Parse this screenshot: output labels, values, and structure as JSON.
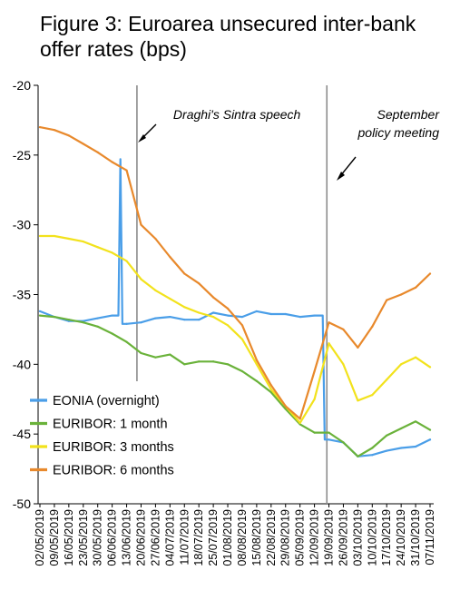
{
  "chart_data": {
    "type": "line",
    "title": "Figure 3: Euroarea unsecured inter-bank",
    "subtitle": "offer rates (bps)",
    "xlabel": "",
    "ylabel": "",
    "ylim": [
      -50,
      -20
    ],
    "y_ticks": [
      "-20",
      "-25",
      "-30",
      "-35",
      "-40",
      "-45",
      "-50"
    ],
    "categories": [
      "02/05/2019",
      "09/05/2019",
      "16/05/2019",
      "23/05/2019",
      "30/05/2019",
      "06/06/2019",
      "13/06/2019",
      "20/06/2019",
      "27/06/2019",
      "04/07/2019",
      "11/07/2019",
      "18/07/2019",
      "25/07/2019",
      "01/08/2019",
      "08/08/2019",
      "15/08/2019",
      "22/08/2019",
      "29/08/2019",
      "05/09/2019",
      "12/09/2019",
      "19/09/2019",
      "26/09/2019",
      "03/10/2019",
      "10/10/2019",
      "17/10/2019",
      "24/10/2019",
      "31/10/2019",
      "07/11/2019"
    ],
    "legend_position": "bottom-left",
    "grid": false,
    "series": [
      {
        "name": "EONIA (overnight)",
        "color": "#4a9ee8",
        "values": [
          -36.2,
          -36.6,
          -36.9,
          -36.9,
          -36.7,
          -36.5,
          -37.1,
          -37.0,
          -36.7,
          -36.6,
          -36.8,
          -36.8,
          -36.3,
          -36.5,
          -36.6,
          -36.2,
          -36.4,
          -36.4,
          -36.6,
          -36.5,
          -45.4,
          -45.6,
          -46.6,
          -46.5,
          -46.2,
          -46.0,
          -45.9,
          -45.4
        ],
        "spikes": [
          {
            "x": "10/06/2019",
            "y": -25.3
          },
          {
            "x": "16/09/2019",
            "y": -36.5
          }
        ]
      },
      {
        "name": "EURIBOR: 1 month",
        "color": "#6ab23a",
        "values": [
          -36.5,
          -36.6,
          -36.8,
          -37.0,
          -37.3,
          -37.8,
          -38.4,
          -39.2,
          -39.5,
          -39.3,
          -40.0,
          -39.8,
          -39.8,
          -40.0,
          -40.5,
          -41.2,
          -42.0,
          -43.2,
          -44.3,
          -44.9,
          -44.9,
          -45.6,
          -46.6,
          -46.0,
          -45.1,
          -44.6,
          -44.1,
          -44.7
        ]
      },
      {
        "name": "EURIBOR: 3 months",
        "color": "#f2e21c",
        "values": [
          -30.8,
          -30.8,
          -31.0,
          -31.2,
          -31.6,
          -32.0,
          -32.6,
          -33.9,
          -34.7,
          -35.3,
          -35.9,
          -36.3,
          -36.6,
          -37.2,
          -38.2,
          -40.0,
          -41.8,
          -43.0,
          -44.2,
          -42.5,
          -38.5,
          -40.0,
          -42.6,
          -42.2,
          -41.1,
          -40.0,
          -39.5,
          -40.2
        ]
      },
      {
        "name": "EURIBOR: 6 months",
        "color": "#e8892c",
        "values": [
          -23.0,
          -23.2,
          -23.6,
          -24.2,
          -24.8,
          -25.5,
          -26.1,
          -30.0,
          -31.0,
          -32.3,
          -33.5,
          -34.2,
          -35.2,
          -36.0,
          -37.2,
          -39.7,
          -41.5,
          -43.0,
          -43.9,
          -40.5,
          -37.0,
          -37.5,
          -38.8,
          -37.3,
          -35.4,
          -35.0,
          -34.5,
          -33.5
        ]
      }
    ],
    "annotations": [
      {
        "text": "Draghi's Sintra speech",
        "x": "18/06/2019"
      },
      {
        "text": "September",
        "x": "18/09/2019"
      },
      {
        "text": "policy meeting",
        "x": "18/09/2019"
      }
    ]
  }
}
